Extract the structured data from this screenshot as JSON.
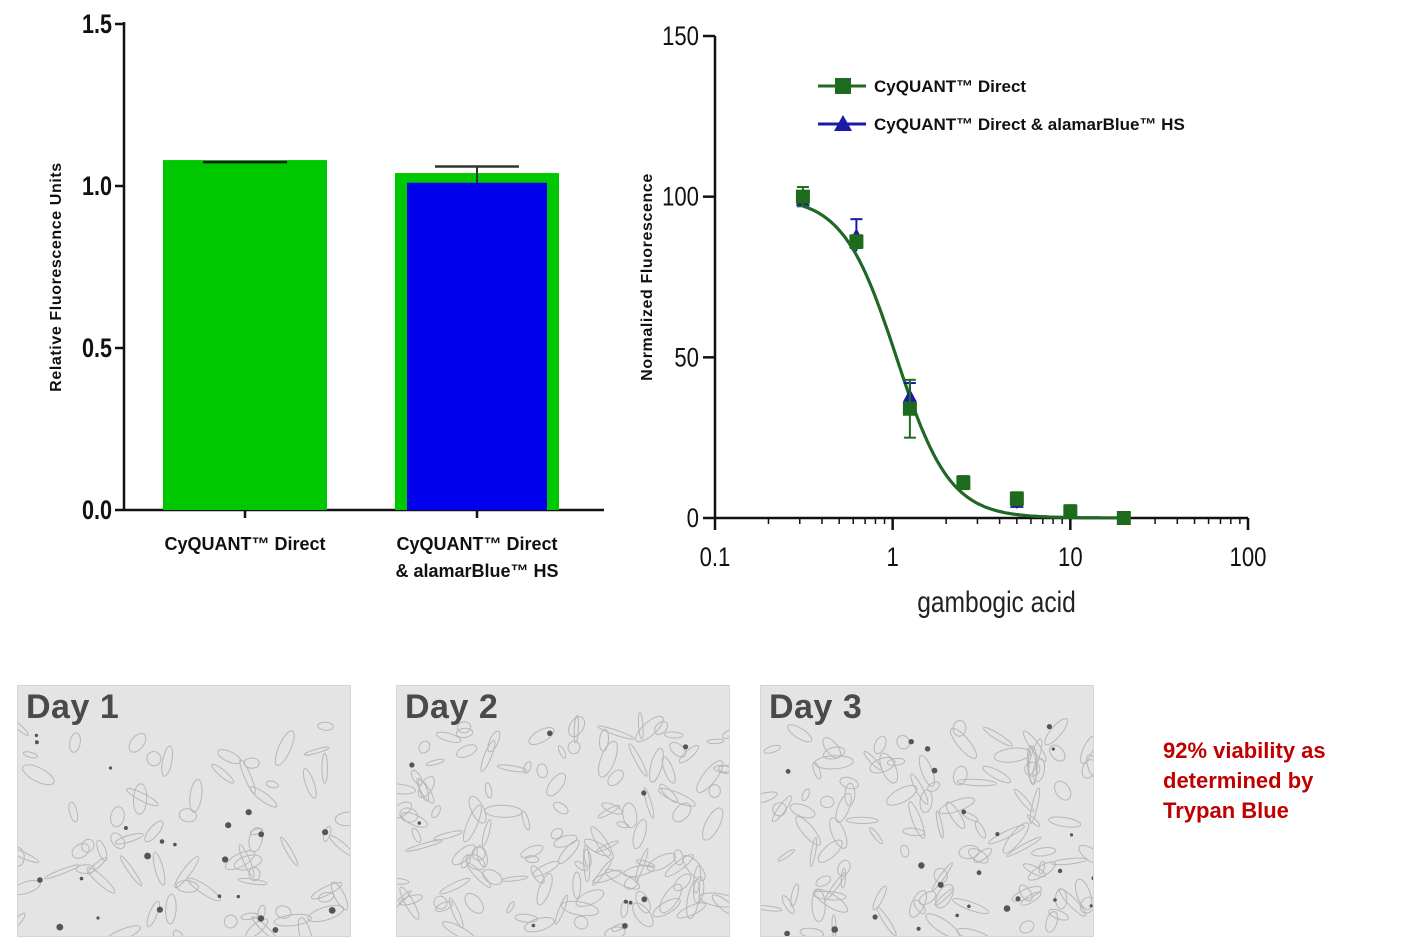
{
  "chart_data": [
    {
      "type": "bar",
      "categories": [
        "CyQUANT™ Direct",
        "CyQUANT™ Direct\n& alamarBlue™  HS"
      ],
      "category_lines": [
        [
          "CyQUANT™ Direct"
        ],
        [
          "CyQUANT™ Direct",
          "& alamarBlue™  HS"
        ]
      ],
      "series": [
        {
          "values": [
            1.08,
            1.04
          ],
          "errors": [
            0.0,
            0.02
          ],
          "color": "#00c800"
        },
        {
          "values": [
            null,
            1.01
          ],
          "color": "#0000ee"
        }
      ],
      "ylabel": "Relative Fluorescence Units",
      "ylim": [
        0,
        1.5
      ],
      "yticks": [
        0,
        0.5,
        1.0,
        1.5
      ],
      "ytick_labels": [
        "0.0",
        "0.5",
        "1.0",
        "1.5"
      ],
      "grid": false
    },
    {
      "type": "scatter",
      "xscale": "log",
      "xlim": [
        0.1,
        100
      ],
      "ylim": [
        0,
        150
      ],
      "xticks": [
        0.1,
        1,
        10,
        100
      ],
      "xtick_labels": [
        "0.1",
        "1",
        "10",
        "100"
      ],
      "yticks": [
        0,
        50,
        100,
        150
      ],
      "ytick_labels": [
        "0",
        "50",
        "100",
        "150"
      ],
      "xlabel": "gambogic acid",
      "ylabel": "Normalized Fluorescence",
      "legend_position": "top-right",
      "grid": false,
      "fit": {
        "model": "sigmoid",
        "top": 100,
        "bottom": 0,
        "ec50": 1.05,
        "hill": 2.9
      },
      "series": [
        {
          "name": "CyQUANT™ Direct",
          "marker": "square",
          "color": "#1e6b1e",
          "x": [
            0.3125,
            0.625,
            1.25,
            2.5,
            5,
            10,
            20
          ],
          "y": [
            100,
            86,
            34,
            11,
            6,
            2,
            0
          ],
          "errors": [
            3,
            2,
            9,
            2,
            2,
            2,
            1
          ]
        },
        {
          "name": "CyQUANT™ Direct & alamarBlue™ HS",
          "marker": "triangle",
          "color": "#1a1aa6",
          "x": [
            0.3125,
            0.625,
            1.25,
            2.5,
            5,
            10,
            20
          ],
          "y": [
            99,
            88,
            38,
            11,
            5,
            2,
            0
          ],
          "errors": [
            2,
            5,
            4,
            2,
            2,
            1,
            1
          ]
        }
      ]
    }
  ],
  "panels": [
    {
      "label": "Day 1"
    },
    {
      "label": "Day 2"
    },
    {
      "label": "Day 3"
    }
  ],
  "note": {
    "line1": "92%  viability as",
    "line2": "determined by",
    "line3": "Trypan Blue"
  }
}
